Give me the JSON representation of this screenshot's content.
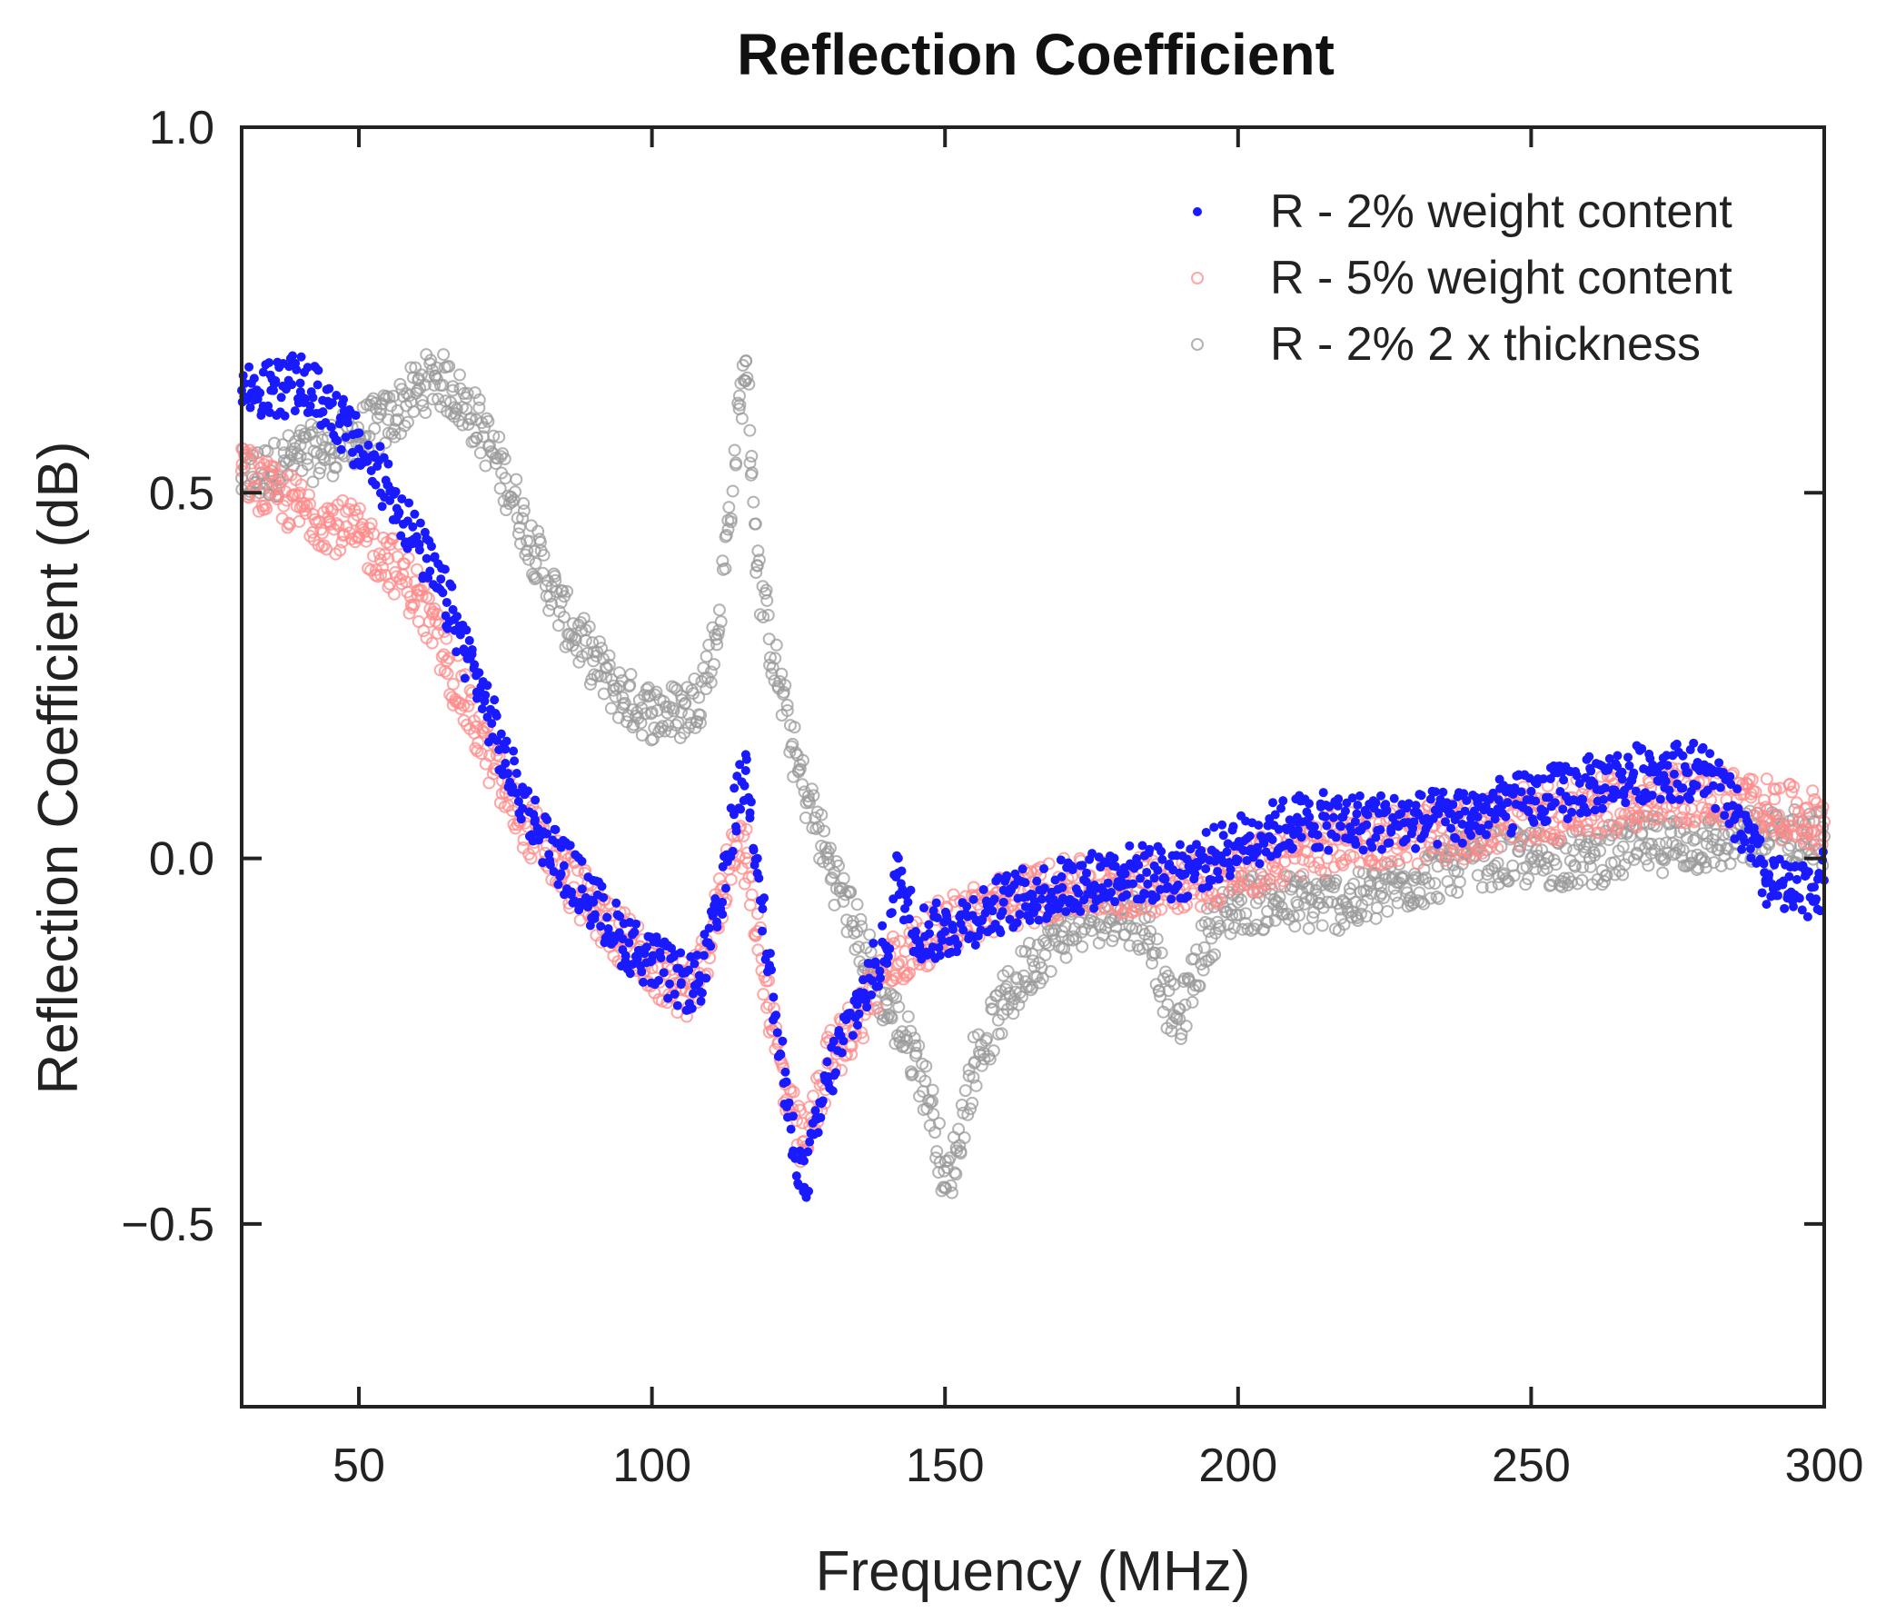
{
  "chart_data": {
    "type": "scatter",
    "title": "Reflection Coefficient",
    "xlabel": "Frequency (MHz)",
    "ylabel": "Reflection Coefficient (dB)",
    "xlim": [
      30,
      300
    ],
    "ylim": [
      -0.75,
      1.0
    ],
    "xticks": [
      50,
      100,
      150,
      200,
      250,
      300
    ],
    "xtick_labels": [
      "50",
      "100",
      "150",
      "200",
      "250",
      "300"
    ],
    "yticks": [
      -0.5,
      0.0,
      0.5,
      1.0
    ],
    "ytick_labels": [
      "−0.5",
      "0.0",
      "0.5",
      "1.0"
    ],
    "grid": false,
    "legend_position": "top-right",
    "series": [
      {
        "name": "R - 2% weight content",
        "color": "#1a1aff",
        "marker": "filled-dot",
        "x": [
          30,
          35,
          40,
          45,
          50,
          55,
          60,
          65,
          70,
          75,
          80,
          85,
          90,
          95,
          100,
          105,
          108,
          112,
          114,
          116,
          118,
          120,
          123,
          126,
          130,
          135,
          140,
          142,
          145,
          150,
          160,
          170,
          180,
          190,
          200,
          210,
          220,
          230,
          240,
          250,
          260,
          270,
          280,
          285,
          290,
          295,
          300
        ],
        "y": [
          0.64,
          0.64,
          0.65,
          0.62,
          0.56,
          0.51,
          0.43,
          0.35,
          0.25,
          0.13,
          0.05,
          -0.01,
          -0.06,
          -0.11,
          -0.14,
          -0.17,
          -0.17,
          -0.06,
          0.06,
          0.12,
          0.0,
          -0.15,
          -0.34,
          -0.45,
          -0.3,
          -0.2,
          -0.12,
          -0.02,
          -0.1,
          -0.1,
          -0.06,
          -0.04,
          -0.02,
          -0.02,
          0.02,
          0.05,
          0.05,
          0.05,
          0.06,
          0.08,
          0.1,
          0.12,
          0.12,
          0.06,
          -0.03,
          -0.05,
          -0.03
        ]
      },
      {
        "name": "R - 5% weight content",
        "color": "#ff8a8a",
        "marker": "open-circle",
        "x": [
          30,
          35,
          40,
          45,
          50,
          55,
          60,
          65,
          70,
          75,
          80,
          85,
          90,
          95,
          100,
          105,
          108,
          112,
          114,
          116,
          118,
          120,
          123,
          126,
          130,
          135,
          140,
          145,
          150,
          160,
          170,
          180,
          190,
          200,
          210,
          220,
          230,
          240,
          250,
          260,
          270,
          280,
          290,
          300
        ],
        "y": [
          0.53,
          0.5,
          0.48,
          0.46,
          0.44,
          0.41,
          0.36,
          0.27,
          0.18,
          0.09,
          0.03,
          -0.02,
          -0.07,
          -0.11,
          -0.15,
          -0.18,
          -0.17,
          -0.05,
          0.03,
          0.0,
          -0.1,
          -0.2,
          -0.33,
          -0.4,
          -0.28,
          -0.22,
          -0.15,
          -0.12,
          -0.09,
          -0.06,
          -0.04,
          -0.04,
          -0.03,
          -0.02,
          0.01,
          0.03,
          0.03,
          0.04,
          0.06,
          0.07,
          0.08,
          0.09,
          0.07,
          0.05
        ]
      },
      {
        "name": "R - 2% 2 x thickness",
        "color": "#9a9a9a",
        "marker": "open-circle",
        "x": [
          30,
          35,
          40,
          45,
          50,
          55,
          60,
          63,
          66,
          70,
          75,
          80,
          85,
          90,
          95,
          100,
          105,
          108,
          111,
          113,
          115,
          116,
          117,
          118,
          120,
          125,
          130,
          135,
          140,
          145,
          148,
          150,
          152,
          155,
          160,
          165,
          170,
          175,
          180,
          185,
          188,
          190,
          195,
          200,
          210,
          220,
          230,
          240,
          250,
          260,
          270,
          280,
          290,
          300
        ],
        "y": [
          0.52,
          0.53,
          0.55,
          0.56,
          0.58,
          0.6,
          0.64,
          0.66,
          0.64,
          0.6,
          0.52,
          0.42,
          0.33,
          0.27,
          0.22,
          0.2,
          0.2,
          0.22,
          0.3,
          0.45,
          0.62,
          0.68,
          0.55,
          0.4,
          0.3,
          0.12,
          0.0,
          -0.1,
          -0.2,
          -0.27,
          -0.35,
          -0.45,
          -0.4,
          -0.28,
          -0.2,
          -0.14,
          -0.1,
          -0.08,
          -0.07,
          -0.1,
          -0.2,
          -0.22,
          -0.1,
          -0.06,
          -0.06,
          -0.06,
          -0.03,
          0.0,
          0.0,
          0.0,
          0.02,
          0.02,
          0.03,
          0.03
        ]
      }
    ]
  }
}
